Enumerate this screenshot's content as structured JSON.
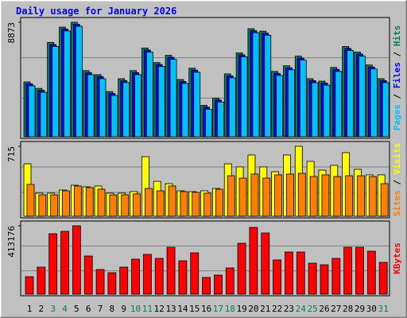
{
  "chart_data": [
    {
      "type": "bar",
      "title": "Daily usage for January 2026",
      "legend_separator": " / ",
      "ylim": [
        0,
        8873
      ],
      "yticks": [
        8873
      ],
      "series": [
        {
          "name": "Hits",
          "color": "#00805c",
          "values": [
            4250,
            3750,
            7312,
            8498,
            8873,
            5124,
            4812,
            3500,
            4500,
            5124,
            6874,
            5749,
            6312,
            4437,
            5312,
            2437,
            3000,
            4874,
            6499,
            8374,
            8186,
            5062,
            5499,
            6249,
            4500,
            4312,
            5374,
            6999,
            6562,
            5562,
            4500
          ]
        },
        {
          "name": "Files",
          "color": "#0000ff",
          "values": [
            4100,
            3600,
            7150,
            8350,
            8720,
            4970,
            4660,
            3350,
            4350,
            4970,
            6720,
            5600,
            6160,
            4290,
            5160,
            2290,
            2850,
            4720,
            6350,
            8220,
            8030,
            4910,
            5350,
            6100,
            4350,
            4160,
            5220,
            6850,
            6410,
            5410,
            4350
          ]
        },
        {
          "name": "Pages",
          "color": "#00c0ff",
          "values": [
            3950,
            3450,
            7000,
            8200,
            8560,
            4810,
            4500,
            3200,
            4200,
            4810,
            6560,
            5440,
            6000,
            4130,
            5000,
            2130,
            2690,
            4560,
            6190,
            8060,
            7870,
            4750,
            5190,
            5940,
            4190,
            4000,
            5060,
            6690,
            6250,
            5250,
            4190
          ]
        }
      ]
    },
    {
      "type": "bar",
      "legend_separator": " / ",
      "ylim": [
        0,
        715
      ],
      "yticks": [
        715
      ],
      "series": [
        {
          "name": "Visits",
          "color": "#ffff00",
          "values": [
            536,
            236,
            236,
            268,
            317,
            301,
            309,
            236,
            236,
            252,
            609,
            357,
            333,
            260,
            252,
            260,
            284,
            536,
            504,
            626,
            504,
            455,
            626,
            715,
            561,
            471,
            520,
            650,
            479,
            423,
            423
          ]
        },
        {
          "name": "Sites",
          "color": "#ff8000",
          "values": [
            325,
            219,
            219,
            260,
            309,
            293,
            276,
            219,
            219,
            228,
            284,
            260,
            309,
            252,
            244,
            236,
            276,
            414,
            390,
            431,
            390,
            423,
            431,
            439,
            406,
            423,
            406,
            414,
            414,
            406,
            333
          ]
        }
      ]
    },
    {
      "type": "bar",
      "ylim": [
        0,
        413176
      ],
      "yticks": [
        413176
      ],
      "categories": [
        "1",
        "2",
        "3",
        "4",
        "5",
        "6",
        "7",
        "8",
        "9",
        "10",
        "11",
        "12",
        "13",
        "14",
        "15",
        "16",
        "17",
        "18",
        "19",
        "20",
        "21",
        "22",
        "23",
        "24",
        "25",
        "26",
        "27",
        "28",
        "29",
        "30",
        "31"
      ],
      "category_colors": [
        "#000000",
        "#000000",
        "#00805c",
        "#00805c",
        "#000000",
        "#000000",
        "#000000",
        "#000000",
        "#000000",
        "#00805c",
        "#00805c",
        "#000000",
        "#000000",
        "#000000",
        "#000000",
        "#000000",
        "#00805c",
        "#00805c",
        "#000000",
        "#000000",
        "#000000",
        "#000000",
        "#000000",
        "#00805c",
        "#00805c",
        "#000000",
        "#000000",
        "#000000",
        "#000000",
        "#000000",
        "#00805c"
      ],
      "series": [
        {
          "name": "KBytes",
          "color": "#ff0000",
          "values": [
            105688,
            163336,
            365104,
            379516,
            413176,
            230592,
            148924,
            129708,
            163336,
            211376,
            240200,
            216180,
            283436,
            201768,
            249808,
            100884,
            115296,
            158532,
            307456,
            403536,
            369908,
            206572,
            254612,
            254612,
            187356,
            177748,
            216180,
            283436,
            283436,
            259416,
            192160
          ]
        }
      ]
    }
  ]
}
